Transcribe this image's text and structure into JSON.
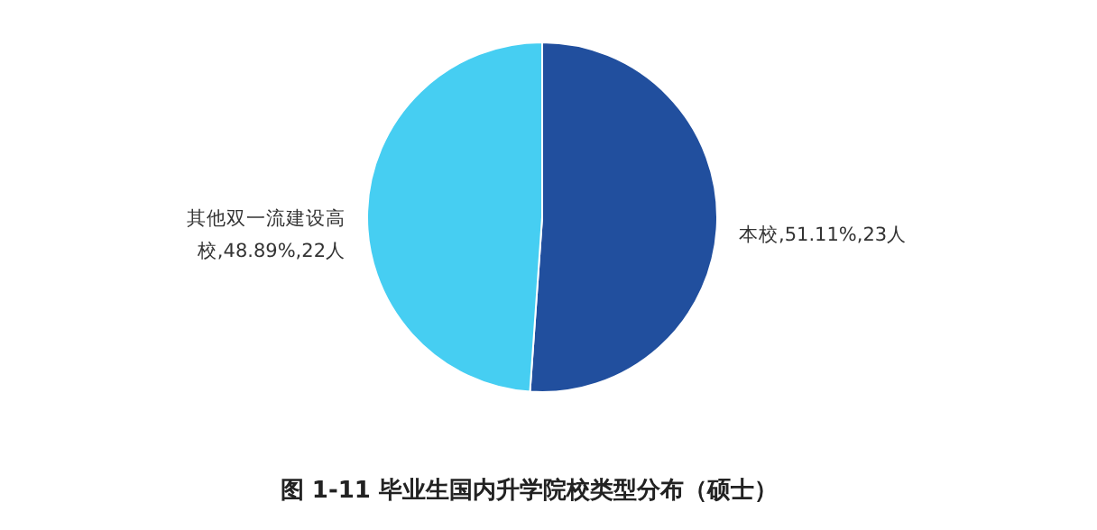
{
  "chart_data": {
    "type": "pie",
    "title": "图 1-11      毕业生国内升学院校类型分布（硕士）",
    "categories": [
      "本校",
      "其他双一流建设高校"
    ],
    "values": [
      23,
      22
    ],
    "value_labels": [
      "51.11%,23人",
      "48.89%,22人"
    ],
    "colors": [
      "#214f9e",
      "#46cef2"
    ]
  }
}
